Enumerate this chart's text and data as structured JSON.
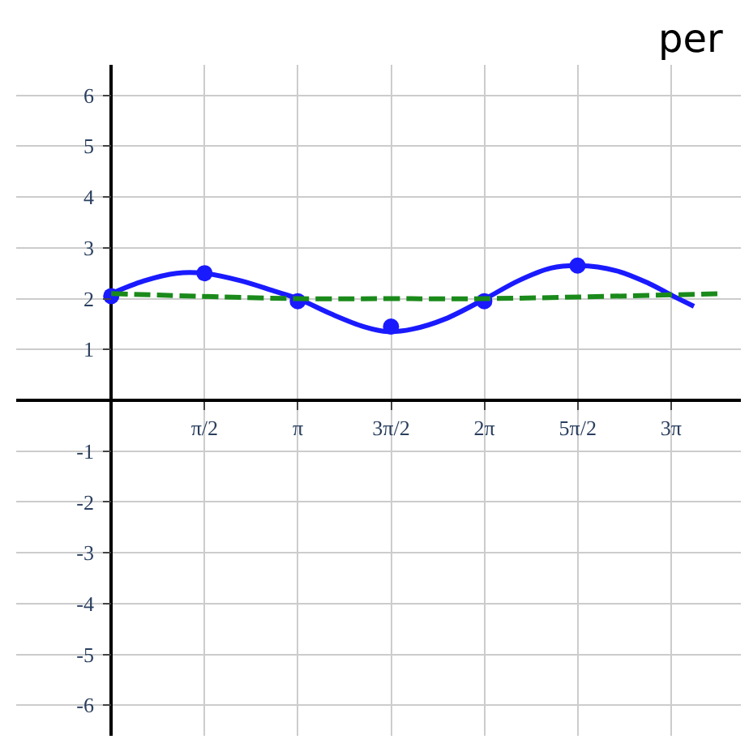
{
  "chart_data": {
    "type": "line",
    "xlim": [
      -1.6,
      10.6
    ],
    "ylim": [
      -6.6,
      6.6
    ],
    "xticks": [
      {
        "value": 1.5708,
        "label": "π/2"
      },
      {
        "value": 3.1416,
        "label": "π"
      },
      {
        "value": 4.7124,
        "label": "3π/2"
      },
      {
        "value": 6.2832,
        "label": "2π"
      },
      {
        "value": 7.854,
        "label": "5π/2"
      },
      {
        "value": 9.4248,
        "label": "3π"
      }
    ],
    "yticks": [
      -6,
      -5,
      -4,
      -3,
      -2,
      -1,
      1,
      2,
      3,
      4,
      5,
      6
    ],
    "grid": true,
    "annotations": [
      "per"
    ],
    "series": [
      {
        "color": "#1a1aff",
        "line_style": "solid",
        "marker": "none",
        "x": [
          0,
          0.55,
          1.1,
          1.56,
          2.19,
          2.74,
          3.14,
          3.7,
          4.25,
          4.66,
          5.07,
          5.62,
          6.3,
          6.85,
          7.4,
          7.87,
          8.5,
          9.05,
          9.46,
          9.81
        ],
        "values": [
          2.1,
          2.35,
          2.5,
          2.5,
          2.35,
          2.15,
          2.0,
          1.7,
          1.45,
          1.35,
          1.4,
          1.6,
          2.0,
          2.35,
          2.6,
          2.65,
          2.55,
          2.3,
          2.05,
          1.85
        ]
      },
      {
        "type": "scatter",
        "color": "#1a1aff",
        "marker": "circle",
        "x": [
          0,
          1.57,
          3.14,
          4.71,
          6.28,
          7.85
        ],
        "values": [
          2.05,
          2.5,
          1.95,
          1.45,
          1.95,
          2.65
        ]
      },
      {
        "color": "#1a8a1a",
        "line_style": "dashed",
        "marker": "none",
        "x": [
          0,
          3.14,
          4.71,
          6.28,
          10.3
        ],
        "values": [
          2.1,
          2.0,
          2.0,
          2.0,
          2.1
        ]
      }
    ]
  }
}
